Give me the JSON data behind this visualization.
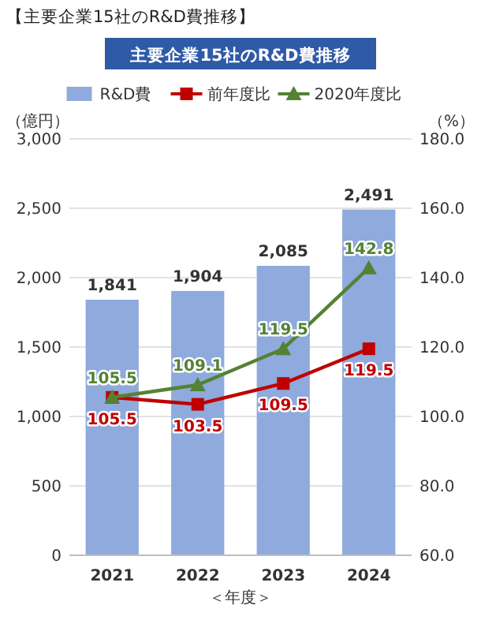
{
  "chart_data": {
    "type": "bar",
    "title": "【主要企業15社のR&D費推移】",
    "subtitle": "主要企業15社のR&D費推移",
    "ylabel": "（億円）",
    "y2label": "（%）",
    "xlabel": "＜年度＞",
    "categories": [
      "2021",
      "2022",
      "2023",
      "2024"
    ],
    "series": [
      {
        "name": "R&D費",
        "color": "#8faadc",
        "values": [
          1841,
          1904,
          2085,
          2491
        ],
        "value_labels": [
          "1,841",
          "1,904",
          "2,085",
          "2,491"
        ]
      },
      {
        "name": "前年度比",
        "type": "line",
        "axis": "y2",
        "color": "#c00000",
        "marker": "square",
        "values": [
          105.5,
          103.5,
          109.5,
          119.5
        ]
      },
      {
        "name": "2020年度比",
        "type": "line",
        "axis": "y2",
        "color": "#548235",
        "marker": "triangle",
        "values": [
          105.5,
          109.1,
          119.5,
          142.8
        ]
      }
    ],
    "ylim": [
      0,
      3000
    ],
    "yticks": [
      0,
      {
        "value": 500,
        "label": "500"
      },
      {
        "value": 1000,
        "label": "1,000"
      },
      {
        "value": 1500,
        "label": "1,500"
      },
      {
        "value": 2000,
        "label": "2,000"
      },
      {
        "value": 2500,
        "label": "2,500"
      },
      {
        "value": 3000,
        "label": "3,000"
      }
    ],
    "y2lim": [
      60,
      180
    ],
    "y2ticks": [
      {
        "value": 60,
        "label": "60.0"
      },
      {
        "value": 80,
        "label": "80.0"
      },
      {
        "value": 100,
        "label": "100.0"
      },
      {
        "value": 120,
        "label": "120.0"
      },
      {
        "value": 140,
        "label": "140.0"
      },
      {
        "value": 160,
        "label": "160.0"
      },
      {
        "value": 180,
        "label": "180.0"
      }
    ],
    "data_labels": true,
    "grid": "y",
    "legend": "top"
  }
}
